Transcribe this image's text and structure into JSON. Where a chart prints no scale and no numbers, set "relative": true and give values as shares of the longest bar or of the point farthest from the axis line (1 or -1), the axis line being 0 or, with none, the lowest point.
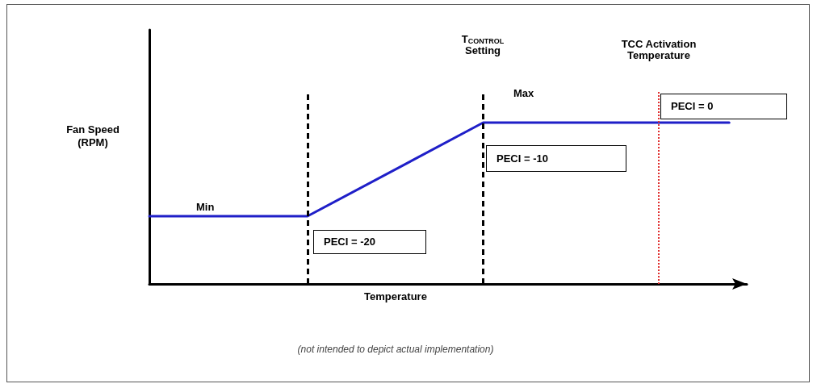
{
  "chart_data": {
    "type": "line",
    "relative": true,
    "xlabel": "Temperature",
    "ylabel": "Fan Speed\n(RPM)",
    "categories": [
      null,
      null,
      null,
      null,
      null,
      null,
      null,
      null,
      null,
      null,
      null,
      null,
      null,
      null,
      null,
      null,
      null,
      null,
      null,
      null,
      null,
      null,
      null,
      null,
      null,
      null,
      null,
      null,
      null,
      null,
      null,
      null,
      null,
      null,
      null
    ],
    "series": [
      {
        "color": "#1f1fc8",
        "values": [
          0.42,
          null,
          null,
          null,
          null,
          null,
          null,
          null,
          null,
          0.42,
          null,
          null,
          null,
          null,
          null,
          null,
          null,
          null,
          null,
          1,
          null,
          null,
          null,
          null,
          null,
          null,
          null,
          null,
          null,
          null,
          null,
          null,
          null,
          1,
          null
        ]
      }
    ],
    "marker": "none",
    "line_style": "solid",
    "annotations": [
      "Min",
      "Max",
      "PECI = -20",
      "PECI = -10",
      "PECI = 0",
      "(not intended to depict actual implementation)",
      "T$_{CONTROL}$\nSetting",
      "TCC Activation\nTemperature"
    ]
  }
}
